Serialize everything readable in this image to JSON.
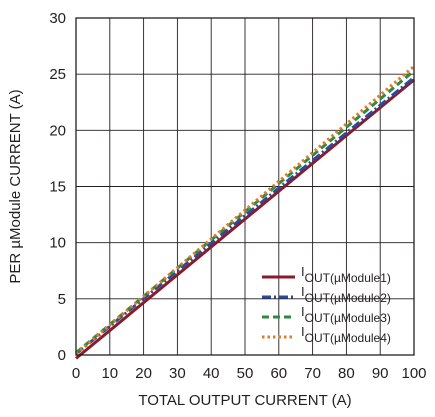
{
  "chart_data": {
    "type": "line",
    "title": "",
    "xlabel": "TOTAL OUTPUT CURRENT (A)",
    "ylabel": "PER µModule CURRENT (A)",
    "xlim": [
      0,
      100
    ],
    "ylim": [
      0,
      30
    ],
    "xticks": [
      0,
      10,
      20,
      30,
      40,
      50,
      60,
      70,
      80,
      90,
      100
    ],
    "yticks": [
      0,
      5,
      10,
      15,
      20,
      25,
      30
    ],
    "grid": true,
    "legend_position": "bottom-right",
    "series": [
      {
        "name_main": "I",
        "name_sub": "OUT(µModule1)",
        "color": "#8b1a2b",
        "dash": "solid",
        "x": [
          0,
          100
        ],
        "y": [
          -0.3,
          24.5
        ]
      },
      {
        "name_main": "I",
        "name_sub": "OUT(µModule2)",
        "color": "#2b4a9b",
        "dash": "dashdot",
        "x": [
          0,
          100
        ],
        "y": [
          0.1,
          24.7
        ]
      },
      {
        "name_main": "I",
        "name_sub": "OUT(µModule3)",
        "color": "#2e8b3e",
        "dash": "dash",
        "x": [
          0,
          100
        ],
        "y": [
          0.2,
          25.3
        ]
      },
      {
        "name_main": "I",
        "name_sub": "OUT(µModule4)",
        "color": "#e07b2a",
        "dash": "dot",
        "x": [
          0,
          100
        ],
        "y": [
          0.1,
          25.7
        ]
      }
    ]
  }
}
